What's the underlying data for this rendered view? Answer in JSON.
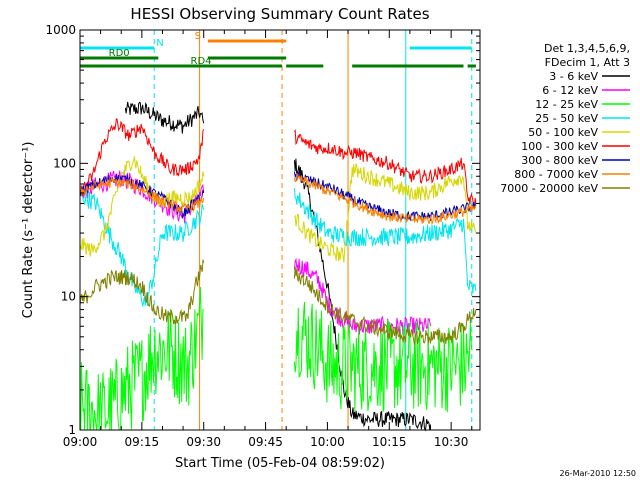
{
  "chart_data": {
    "type": "line",
    "title": "HESSI Observing Summary Count Rates",
    "xlabel": "Start Time (05-Feb-04 08:59:02)",
    "ylabel": "Count Rate (s⁻¹ detector⁻¹)",
    "yscale": "log",
    "xlim": [
      "09:00",
      "10:37"
    ],
    "ylim": [
      1,
      1000
    ],
    "xticks": [
      "09:00",
      "09:15",
      "09:30",
      "09:45",
      "10:00",
      "10:15",
      "10:30"
    ],
    "yticks": [
      "1",
      "10",
      "100",
      "1000"
    ],
    "timestamp": "26-Mar-2010 12:50",
    "legend": {
      "placement": "right-outside",
      "header": [
        "Det 1,3,4,5,6,9,",
        "FDecim 1, Att 3"
      ]
    },
    "flags": [
      {
        "label": "N",
        "color": "#00e5ee",
        "segments": [
          [
            "09:00",
            "09:18"
          ],
          [
            "10:20",
            "10:35"
          ]
        ]
      },
      {
        "label": "S",
        "color": "#ff8000",
        "segments": [
          [
            "09:31",
            "09:50"
          ]
        ]
      },
      {
        "label": "RD0",
        "color": "#007a00",
        "segments": [
          [
            "09:00",
            "09:19"
          ],
          [
            "09:31",
            "09:50"
          ]
        ]
      },
      {
        "label": "RD4",
        "color": "#007a00",
        "segments": [
          [
            "09:00",
            "09:49"
          ],
          [
            "09:50",
            "09:59"
          ],
          [
            "10:06",
            "10:33"
          ],
          [
            "10:34",
            "10:36"
          ]
        ]
      }
    ],
    "vlines": [
      {
        "x": "09:00",
        "color": "#00e5ee",
        "dashed": false
      },
      {
        "x": "09:18",
        "color": "#00e5ee",
        "dashed": true
      },
      {
        "x": "09:29",
        "color": "#ff8000",
        "dashed": false
      },
      {
        "x": "09:49",
        "color": "#ff8000",
        "dashed": true
      },
      {
        "x": "10:05",
        "color": "#ff8000",
        "dashed": false
      },
      {
        "x": "10:19",
        "color": "#00e5ee",
        "dashed": false
      },
      {
        "x": "10:35",
        "color": "#00e5ee",
        "dashed": true
      }
    ],
    "series": [
      {
        "name": "3 - 6 keV",
        "color": "#000000",
        "noise": 0.06,
        "segments": [
          [
            [
              "09:11",
              250
            ],
            [
              "09:15",
              260
            ],
            [
              "09:20",
              210
            ],
            [
              "09:25",
              190
            ],
            [
              "09:29",
              240
            ],
            [
              "09:30",
              200
            ]
          ],
          [
            [
              "09:52",
              100
            ],
            [
              "09:54",
              80
            ],
            [
              "09:56",
              50
            ],
            [
              "09:58",
              25
            ],
            [
              "10:00",
              12
            ],
            [
              "10:02",
              5
            ],
            [
              "10:04",
              2
            ],
            [
              "10:06",
              1.3
            ],
            [
              "10:10",
              1.2
            ],
            [
              "10:15",
              1.2
            ],
            [
              "10:20",
              1.2
            ],
            [
              "10:25",
              1.1
            ]
          ]
        ]
      },
      {
        "name": "6 - 12 keV",
        "color": "#ff00ff",
        "noise": 0.07,
        "segments": [
          [
            [
              "09:00",
              60
            ],
            [
              "09:05",
              70
            ],
            [
              "09:10",
              78
            ],
            [
              "09:15",
              65
            ],
            [
              "09:20",
              50
            ],
            [
              "09:25",
              40
            ],
            [
              "09:29",
              55
            ],
            [
              "09:30",
              60
            ]
          ],
          [
            [
              "09:52",
              18
            ],
            [
              "09:55",
              16
            ],
            [
              "09:58",
              13
            ],
            [
              "10:00",
              9
            ],
            [
              "10:03",
              7
            ],
            [
              "10:06",
              6
            ],
            [
              "10:10",
              6
            ],
            [
              "10:20",
              6
            ],
            [
              "10:25",
              6
            ]
          ]
        ]
      },
      {
        "name": "12 - 25 keV",
        "color": "#00ff00",
        "noise": 0.35,
        "segments": [
          [
            [
              "09:00",
              1.5
            ],
            [
              "09:05",
              1.3
            ],
            [
              "09:08",
              1.5
            ],
            [
              "09:11",
              2
            ],
            [
              "09:15",
              2.5
            ],
            [
              "09:18",
              4
            ],
            [
              "09:22",
              4
            ],
            [
              "09:26",
              3
            ],
            [
              "09:29",
              6
            ],
            [
              "09:30",
              8
            ]
          ],
          [
            [
              "09:52",
              6
            ],
            [
              "09:55",
              5
            ],
            [
              "09:58",
              4
            ],
            [
              "10:01",
              3
            ],
            [
              "10:05",
              3
            ],
            [
              "10:10",
              3
            ],
            [
              "10:15",
              3
            ],
            [
              "10:20",
              3
            ],
            [
              "10:25",
              3
            ],
            [
              "10:30",
              3
            ],
            [
              "10:33",
              3
            ],
            [
              "10:35",
              4
            ]
          ]
        ]
      },
      {
        "name": "25 - 50 keV",
        "color": "#00e5ee",
        "noise": 0.07,
        "segments": [
          [
            [
              "09:00",
              58
            ],
            [
              "09:04",
              50
            ],
            [
              "09:07",
              30
            ],
            [
              "09:10",
              20
            ],
            [
              "09:13",
              12
            ],
            [
              "09:16",
              9
            ],
            [
              "09:18",
              15
            ],
            [
              "09:20",
              30
            ],
            [
              "09:25",
              30
            ],
            [
              "09:29",
              40
            ],
            [
              "09:30",
              45
            ]
          ],
          [
            [
              "09:52",
              60
            ],
            [
              "09:55",
              45
            ],
            [
              "09:58",
              35
            ],
            [
              "10:00",
              30
            ],
            [
              "10:05",
              28
            ],
            [
              "10:10",
              28
            ],
            [
              "10:20",
              28
            ],
            [
              "10:30",
              32
            ],
            [
              "10:33",
              36
            ],
            [
              "10:34",
              12
            ],
            [
              "10:36",
              11
            ]
          ]
        ]
      },
      {
        "name": "50 - 100 keV",
        "color": "#d6d600",
        "noise": 0.06,
        "segments": [
          [
            [
              "09:00",
              25
            ],
            [
              "09:03",
              22
            ],
            [
              "09:06",
              30
            ],
            [
              "09:10",
              80
            ],
            [
              "09:13",
              110
            ],
            [
              "09:16",
              70
            ],
            [
              "09:19",
              50
            ],
            [
              "09:22",
              55
            ],
            [
              "09:27",
              55
            ],
            [
              "09:29",
              70
            ],
            [
              "09:30",
              80
            ]
          ],
          [
            [
              "09:52",
              40
            ],
            [
              "09:55",
              30
            ],
            [
              "09:58",
              25
            ],
            [
              "10:01",
              22
            ],
            [
              "10:04",
              20
            ],
            [
              "10:06",
              90
            ],
            [
              "10:10",
              80
            ],
            [
              "10:15",
              70
            ],
            [
              "10:20",
              60
            ],
            [
              "10:25",
              60
            ],
            [
              "10:30",
              75
            ],
            [
              "10:33",
              80
            ],
            [
              "10:34",
              35
            ],
            [
              "10:36",
              30
            ]
          ]
        ]
      },
      {
        "name": "100 - 300 keV",
        "color": "#ff0000",
        "noise": 0.05,
        "segments": [
          [
            [
              "09:00",
              60
            ],
            [
              "09:03",
              80
            ],
            [
              "09:06",
              150
            ],
            [
              "09:09",
              200
            ],
            [
              "09:12",
              160
            ],
            [
              "09:15",
              190
            ],
            [
              "09:18",
              120
            ],
            [
              "09:22",
              90
            ],
            [
              "09:26",
              90
            ],
            [
              "09:29",
              110
            ],
            [
              "09:30",
              180
            ]
          ],
          [
            [
              "09:52",
              160
            ],
            [
              "09:55",
              140
            ],
            [
              "09:58",
              130
            ],
            [
              "10:01",
              130
            ],
            [
              "10:04",
              120
            ],
            [
              "10:07",
              120
            ],
            [
              "10:10",
              110
            ],
            [
              "10:15",
              100
            ],
            [
              "10:20",
              80
            ],
            [
              "10:25",
              80
            ],
            [
              "10:30",
              90
            ],
            [
              "10:33",
              100
            ],
            [
              "10:34",
              55
            ],
            [
              "10:36",
              50
            ]
          ]
        ]
      },
      {
        "name": "300 - 800 keV",
        "color": "#0000b0",
        "noise": 0.04,
        "segments": [
          [
            [
              "09:00",
              62
            ],
            [
              "09:04",
              70
            ],
            [
              "09:08",
              78
            ],
            [
              "09:12",
              75
            ],
            [
              "09:16",
              65
            ],
            [
              "09:20",
              55
            ],
            [
              "09:25",
              42
            ],
            [
              "09:29",
              55
            ],
            [
              "09:30",
              60
            ]
          ],
          [
            [
              "09:52",
              80
            ],
            [
              "09:55",
              76
            ],
            [
              "09:58",
              70
            ],
            [
              "10:01",
              65
            ],
            [
              "10:04",
              58
            ],
            [
              "10:07",
              52
            ],
            [
              "10:10",
              47
            ],
            [
              "10:15",
              42
            ],
            [
              "10:20",
              40
            ],
            [
              "10:25",
              40
            ],
            [
              "10:30",
              43
            ],
            [
              "10:36",
              48
            ]
          ]
        ]
      },
      {
        "name": "800 - 7000 keV",
        "color": "#ff8000",
        "noise": 0.04,
        "segments": [
          [
            [
              "09:00",
              62
            ],
            [
              "09:04",
              68
            ],
            [
              "09:08",
              72
            ],
            [
              "09:12",
              70
            ],
            [
              "09:16",
              62
            ],
            [
              "09:20",
              52
            ],
            [
              "09:25",
              45
            ],
            [
              "09:29",
              50
            ],
            [
              "09:30",
              55
            ]
          ],
          [
            [
              "09:52",
              78
            ],
            [
              "09:55",
              72
            ],
            [
              "09:58",
              66
            ],
            [
              "10:01",
              60
            ],
            [
              "10:04",
              55
            ],
            [
              "10:07",
              50
            ],
            [
              "10:10",
              45
            ],
            [
              "10:15",
              40
            ],
            [
              "10:20",
              38
            ],
            [
              "10:25",
              38
            ],
            [
              "10:30",
              41
            ],
            [
              "10:36",
              46
            ]
          ]
        ]
      },
      {
        "name": "7000 - 20000 keV",
        "color": "#808000",
        "noise": 0.06,
        "segments": [
          [
            [
              "09:00",
              9
            ],
            [
              "09:04",
              12
            ],
            [
              "09:08",
              14
            ],
            [
              "09:12",
              14
            ],
            [
              "09:15",
              12
            ],
            [
              "09:18",
              8
            ],
            [
              "09:21",
              7
            ],
            [
              "09:26",
              7
            ],
            [
              "09:28",
              12
            ],
            [
              "09:30",
              18
            ]
          ],
          [
            [
              "09:52",
              15
            ],
            [
              "09:55",
              13
            ],
            [
              "09:58",
              10
            ],
            [
              "10:01",
              8
            ],
            [
              "10:04",
              7
            ],
            [
              "10:10",
              6
            ],
            [
              "10:20",
              5
            ],
            [
              "10:25",
              5
            ],
            [
              "10:30",
              5
            ],
            [
              "10:33",
              6
            ],
            [
              "10:36",
              8
            ]
          ]
        ]
      }
    ]
  }
}
